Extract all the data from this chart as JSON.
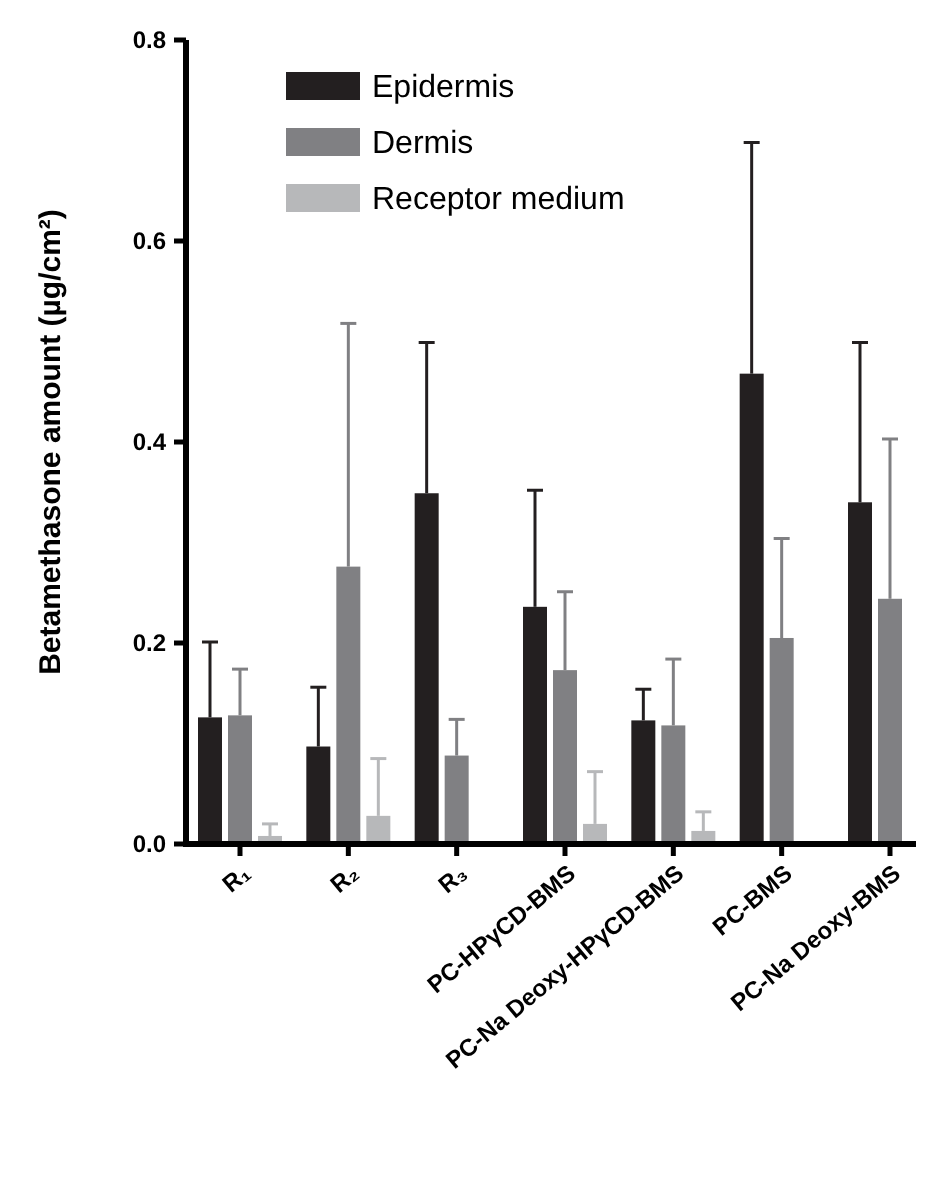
{
  "chart_data": {
    "type": "bar",
    "ylabel": "Betamethasone amount (µg/cm²)",
    "categories": [
      "R₁",
      "R₂",
      "R₃",
      "PC-HPγCD-BMS",
      "PC-Na Deoxy-HPγCD-BMS",
      "PC-BMS",
      "PC-Na Deoxy-BMS"
    ],
    "series": [
      {
        "name": "Epidermis",
        "color": "#231f20",
        "values": [
          0.126,
          0.097,
          0.349,
          0.236,
          0.123,
          0.468,
          0.34
        ],
        "errors": [
          [
            0.126,
            0.201
          ],
          [
            0.097,
            0.156
          ],
          [
            0.349,
            0.499
          ],
          [
            0.236,
            0.352
          ],
          [
            0.123,
            0.154
          ],
          [
            0.468,
            0.698
          ],
          [
            0.34,
            0.499
          ]
        ]
      },
      {
        "name": "Dermis",
        "color": "#808083",
        "values": [
          0.128,
          0.276,
          0.088,
          0.173,
          0.118,
          0.205,
          0.244
        ],
        "errors": [
          [
            0.128,
            0.174
          ],
          [
            0.276,
            0.518
          ],
          [
            0.088,
            0.124
          ],
          [
            0.173,
            0.251
          ],
          [
            0.118,
            0.184
          ],
          [
            0.205,
            0.304
          ],
          [
            0.244,
            0.403
          ]
        ]
      },
      {
        "name": "Receptor medium",
        "color": "#b7b8ba",
        "values": [
          0.008,
          0.028,
          null,
          0.02,
          0.013,
          null,
          null
        ],
        "errors": [
          [
            0.008,
            0.02
          ],
          [
            0.028,
            0.085
          ],
          null,
          [
            0.02,
            0.072
          ],
          [
            0.013,
            0.032
          ],
          null,
          null
        ]
      }
    ],
    "ylim": [
      0,
      0.8
    ],
    "yticks": [
      {
        "value": 0,
        "label": "0.0"
      },
      {
        "value": 0.2,
        "label": "0.2"
      },
      {
        "value": 0.4,
        "label": "0.4"
      },
      {
        "value": 0.6,
        "label": "0.6"
      },
      {
        "value": 0.8,
        "label": "0.8"
      }
    ],
    "grid": false,
    "legend": "top left"
  }
}
